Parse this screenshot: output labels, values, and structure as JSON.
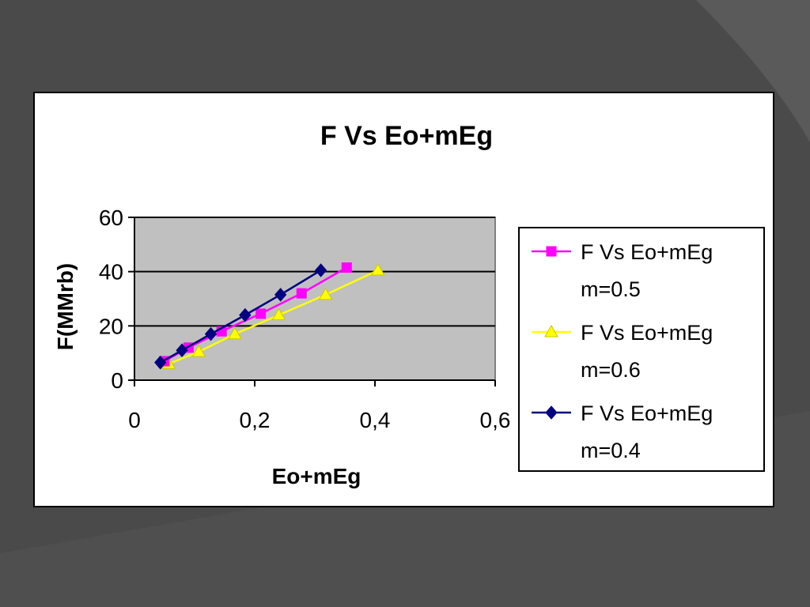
{
  "slide": {
    "background_color": "#4a4a4a",
    "accent_shape_color": "#5a5a5a"
  },
  "chart_data": {
    "type": "line",
    "title": "F Vs Eo+mEg",
    "xlabel": "Eo+mEg",
    "ylabel": "F(MMrb)",
    "xlim": [
      0,
      0.6
    ],
    "ylim": [
      0,
      60
    ],
    "x_ticks": [
      "0",
      "0,2",
      "0,4",
      "0,6"
    ],
    "y_ticks": [
      "0",
      "20",
      "40",
      "60"
    ],
    "plot_background": "#c0c0c0",
    "gridlines": "horizontal",
    "legend_position": "right",
    "series": [
      {
        "name": "F Vs Eo+mEg m=0.5",
        "legend_line1": "F Vs Eo+mEg",
        "legend_line2": "m=0.5",
        "color": "#ff00ff",
        "marker": "square",
        "points": [
          [
            0.05,
            7
          ],
          [
            0.09,
            12
          ],
          [
            0.145,
            18
          ],
          [
            0.21,
            24.5
          ],
          [
            0.278,
            32
          ],
          [
            0.353,
            41.5
          ]
        ]
      },
      {
        "name": "F Vs Eo+mEg m=0.6",
        "legend_line1": "F Vs Eo+mEg",
        "legend_line2": "m=0.6",
        "color": "#ffff00",
        "marker": "triangle",
        "points": [
          [
            0.057,
            6
          ],
          [
            0.107,
            10.5
          ],
          [
            0.167,
            17
          ],
          [
            0.24,
            24
          ],
          [
            0.318,
            31.5
          ],
          [
            0.405,
            40.5
          ]
        ]
      },
      {
        "name": "F Vs Eo+mEg m=0.4",
        "legend_line1": "F Vs Eo+mEg",
        "legend_line2": "m=0.4",
        "color": "#000080",
        "marker": "diamond",
        "points": [
          [
            0.043,
            6.5
          ],
          [
            0.079,
            11
          ],
          [
            0.127,
            17
          ],
          [
            0.184,
            24
          ],
          [
            0.243,
            31.5
          ],
          [
            0.31,
            40.5
          ]
        ]
      }
    ]
  }
}
